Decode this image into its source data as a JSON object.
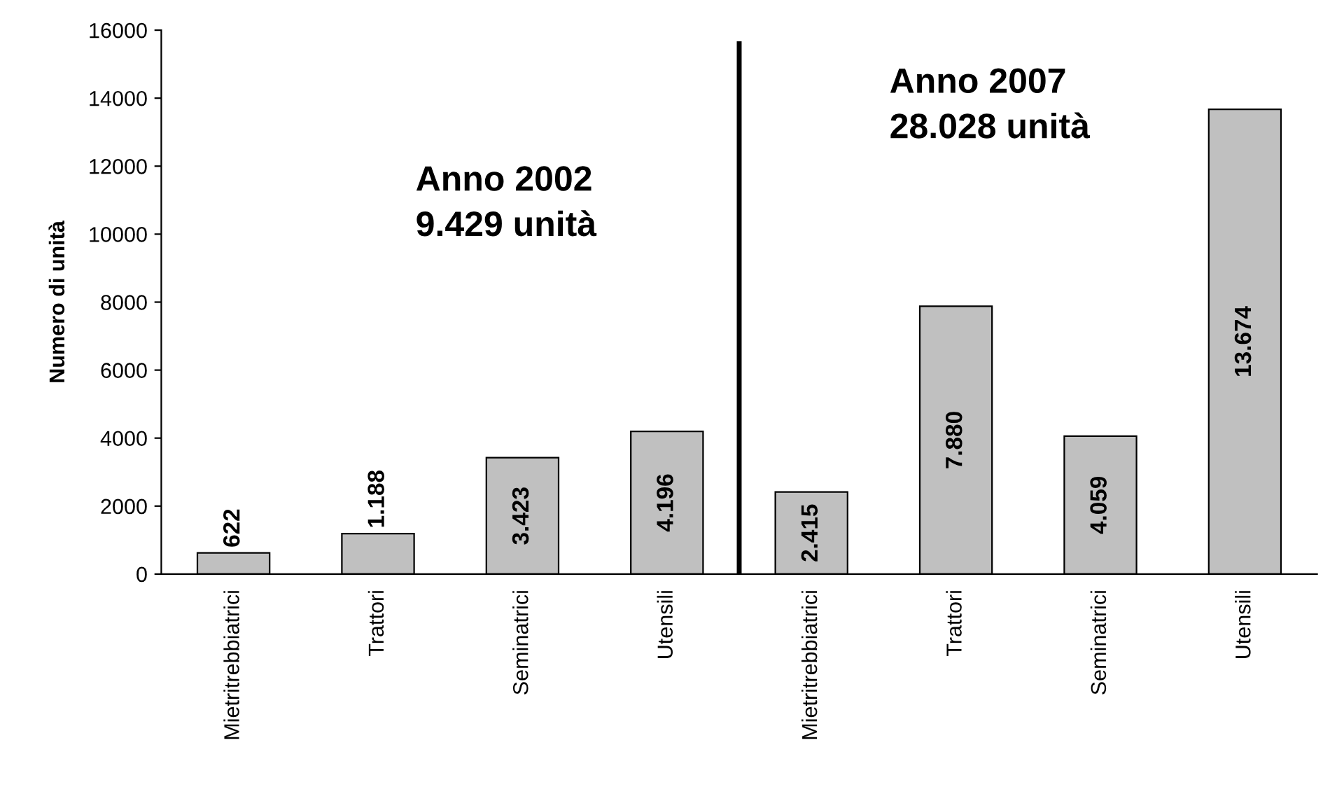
{
  "chart_data": {
    "type": "bar",
    "ylabel": "Numero di unità",
    "categories": [
      "Mietritrebbiatrici",
      "Trattori",
      "Seminatrici",
      "Utensili",
      "Mietritrebbiatrici",
      "Trattori",
      "Seminatrici",
      "Utensili"
    ],
    "values": [
      622,
      1188,
      3423,
      4196,
      2415,
      7880,
      4059,
      13674
    ],
    "value_labels": [
      "622",
      "1.188",
      "3.423",
      "4.196",
      "2.415",
      "7.880",
      "4.059",
      "13.674"
    ],
    "color": "#c0c0c0",
    "ylim": [
      0,
      16000
    ],
    "yticks": [
      0,
      2000,
      4000,
      6000,
      8000,
      10000,
      12000,
      14000,
      16000
    ],
    "grid": false,
    "legend": false,
    "annotations": [
      "Anno 2002\n9.429 unità",
      "Anno 2007\n28.028 unità"
    ]
  }
}
